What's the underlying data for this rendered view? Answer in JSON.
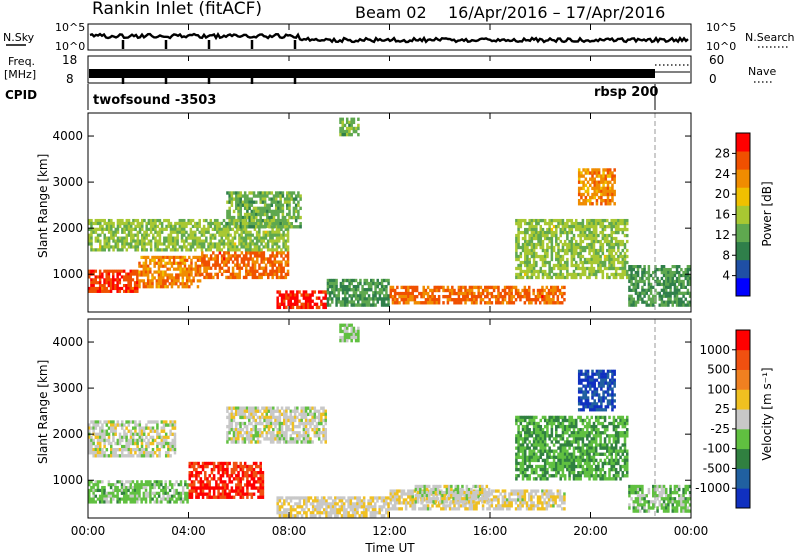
{
  "header": {
    "station": "Rankin Inlet (fitACF)",
    "beam": "Beam 02",
    "date_range": "16/Apr/2016 – 17/Apr/2016"
  },
  "aux": {
    "nsky_label": "N.Sky",
    "nsearch_label": "N.Search",
    "freq_label_1": "Freq.",
    "freq_label_2": "[MHz]",
    "nave_label": "Nave",
    "cpid_label": "CPID",
    "left_ticks": [
      "10^5",
      "10^0"
    ],
    "right_ticks": [
      "10^5",
      "10^0"
    ],
    "freq_ticks": [
      "18",
      "8"
    ],
    "nave_ticks": [
      "60",
      "0"
    ],
    "cpid_1": "twofsound -3503",
    "cpid_2": "rbsp 200"
  },
  "panels": {
    "ylabel": "Slant Range [km]",
    "xlabel": "Time UT",
    "y_ticks": [
      "4000",
      "3000",
      "2000",
      "1000"
    ],
    "x_ticks": [
      "00:00",
      "04:00",
      "08:00",
      "12:00",
      "16:00",
      "20:00",
      "00:00"
    ]
  },
  "colorbars": {
    "power_label": "Power [dB]",
    "power_ticks": [
      "28",
      "24",
      "20",
      "16",
      "12",
      "8",
      "4"
    ],
    "velocity_label": "Velocity [m s⁻¹]",
    "velocity_ticks": [
      "1000",
      "500",
      "100",
      "25",
      "-25",
      "-100",
      "-500",
      "-1000"
    ]
  },
  "colors": {
    "power": [
      "#0000ff",
      "#1f4fa5",
      "#2f7f4a",
      "#5fa84f",
      "#a8c832",
      "#f0c000",
      "#f08c00",
      "#f05000",
      "#ff0000"
    ],
    "velocity": [
      "#1030c0",
      "#2060a0",
      "#308040",
      "#60c040",
      "#c8c8c8",
      "#f0c020",
      "#f08020",
      "#f05010",
      "#ff0000"
    ]
  },
  "chart_data": [
    {
      "type": "heatmap",
      "title": "Power [dB]",
      "xlabel": "Time UT",
      "ylabel": "Slant Range [km]",
      "xlim": [
        "00:00",
        "24:00"
      ],
      "ylim": [
        180,
        4500
      ],
      "clim": [
        0,
        30
      ],
      "blobs": [
        {
          "t0": 0.0,
          "t1": 2.0,
          "r0": 600,
          "r1": 1100,
          "value": 26
        },
        {
          "t0": 2.0,
          "t1": 4.5,
          "r0": 700,
          "r1": 1400,
          "value": 22
        },
        {
          "t0": 4.5,
          "t1": 8.0,
          "r0": 900,
          "r1": 1500,
          "value": 24
        },
        {
          "t0": 0.0,
          "t1": 8.0,
          "r0": 1500,
          "r1": 2200,
          "value": 14
        },
        {
          "t0": 5.5,
          "t1": 8.5,
          "r0": 2000,
          "r1": 2800,
          "value": 12
        },
        {
          "t0": 7.5,
          "t1": 9.5,
          "r0": 250,
          "r1": 650,
          "value": 28
        },
        {
          "t0": 9.5,
          "t1": 12.0,
          "r0": 300,
          "r1": 900,
          "value": 10
        },
        {
          "t0": 12.0,
          "t1": 19.0,
          "r0": 350,
          "r1": 750,
          "value": 24
        },
        {
          "t0": 17.0,
          "t1": 21.5,
          "r0": 900,
          "r1": 2200,
          "value": 14
        },
        {
          "t0": 19.5,
          "t1": 21.0,
          "r0": 2500,
          "r1": 3300,
          "value": 22
        },
        {
          "t0": 21.5,
          "t1": 24.0,
          "r0": 300,
          "r1": 1200,
          "value": 10
        },
        {
          "t0": 10.0,
          "t1": 10.8,
          "r0": 4000,
          "r1": 4400,
          "value": 12
        }
      ]
    },
    {
      "type": "heatmap",
      "title": "Velocity [m s⁻¹]",
      "xlabel": "Time UT",
      "ylabel": "Slant Range [km]",
      "xlim": [
        "00:00",
        "24:00"
      ],
      "ylim": [
        180,
        4500
      ],
      "clim": [
        -1000,
        1000
      ],
      "blobs": [
        {
          "t0": 0.0,
          "t1": 4.0,
          "r0": 500,
          "r1": 1000,
          "value": -200
        },
        {
          "t0": 0.0,
          "t1": 3.5,
          "r0": 1500,
          "r1": 2300,
          "value": 0
        },
        {
          "t0": 4.0,
          "t1": 7.0,
          "r0": 600,
          "r1": 1400,
          "value": 800
        },
        {
          "t0": 5.5,
          "t1": 9.5,
          "r0": 1800,
          "r1": 2600,
          "value": 0
        },
        {
          "t0": 7.5,
          "t1": 12.0,
          "r0": 200,
          "r1": 650,
          "value": 80
        },
        {
          "t0": 12.0,
          "t1": 19.0,
          "r0": 350,
          "r1": 800,
          "value": 60
        },
        {
          "t0": 13.0,
          "t1": 16.0,
          "r0": 500,
          "r1": 900,
          "value": 0
        },
        {
          "t0": 17.0,
          "t1": 21.5,
          "r0": 1000,
          "r1": 2400,
          "value": -300
        },
        {
          "t0": 19.5,
          "t1": 21.0,
          "r0": 2500,
          "r1": 3400,
          "value": -800
        },
        {
          "t0": 21.5,
          "t1": 24.0,
          "r0": 300,
          "r1": 900,
          "value": -200
        },
        {
          "t0": 10.0,
          "t1": 10.8,
          "r0": 4000,
          "r1": 4400,
          "value": -150
        }
      ]
    }
  ]
}
